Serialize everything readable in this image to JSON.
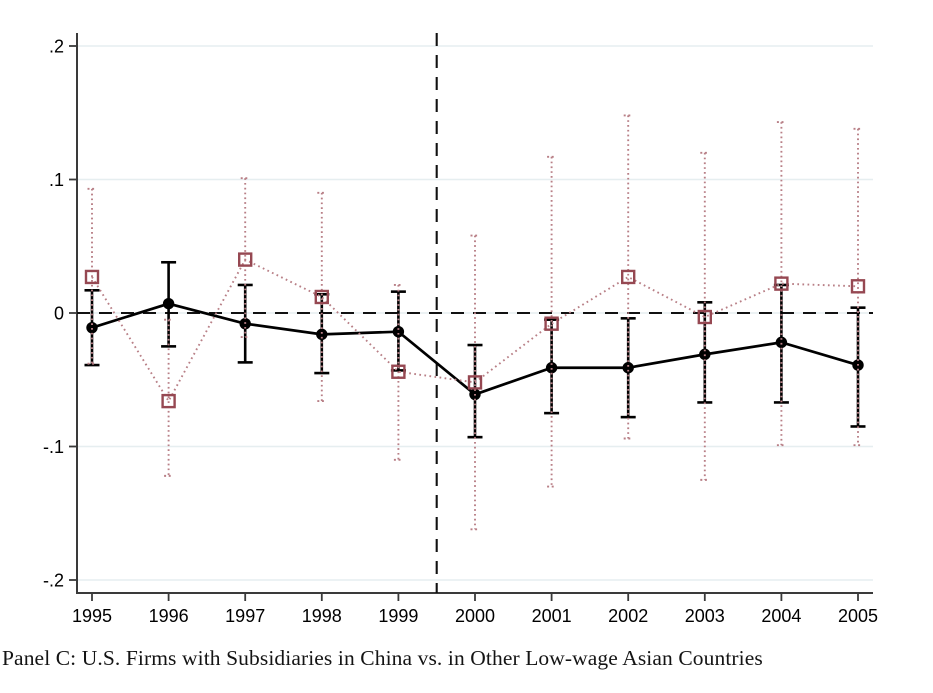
{
  "caption": "Panel C: U.S. Firms with Subsidiaries in China vs. in Other Low-wage Asian Countries",
  "chart_data": {
    "type": "line",
    "subtype": "event-study point estimates with confidence intervals",
    "title": "",
    "xlabel": "",
    "ylabel": "",
    "x": [
      1995,
      1996,
      1997,
      1998,
      1999,
      2000,
      2001,
      2002,
      2003,
      2004,
      2005
    ],
    "x_tick_labels": [
      "1995",
      "1996",
      "1997",
      "1998",
      "1999",
      "2000",
      "2001",
      "2002",
      "2003",
      "2004",
      "2005"
    ],
    "y_ticks": [
      0.2,
      0.1,
      0,
      -0.1,
      -0.2
    ],
    "y_tick_labels": [
      ".2",
      ".1",
      "0",
      "-.1",
      "-.2"
    ],
    "ylim": [
      -0.21,
      0.21
    ],
    "grid": "horizontal",
    "gridline_color": "#e6eef0",
    "axis_color": "#3a3a3a",
    "legend": "none",
    "reference_lines": [
      {
        "axis": "y",
        "value": 0,
        "style": "dashed",
        "color": "#111111"
      },
      {
        "axis": "x",
        "value": 1999.5,
        "style": "dashed",
        "color": "#111111"
      }
    ],
    "series": [
      {
        "name": "U.S. firms with subsidiaries in China",
        "marker": "filled-circle",
        "line_style": "solid",
        "color": "#000000",
        "est": [
          -0.011,
          0.007,
          -0.008,
          -0.016,
          -0.014,
          -0.061,
          -0.041,
          -0.041,
          -0.031,
          -0.022,
          -0.039
        ],
        "ci_low": [
          -0.039,
          -0.025,
          -0.037,
          -0.045,
          -0.043,
          -0.093,
          -0.075,
          -0.078,
          -0.067,
          -0.067,
          -0.085
        ],
        "ci_high": [
          0.017,
          0.038,
          0.021,
          0.014,
          0.016,
          -0.024,
          -0.005,
          -0.004,
          0.008,
          0.021,
          0.004
        ]
      },
      {
        "name": "U.S. firms with subsidiaries in other low-wage Asian countries",
        "marker": "hollow-square",
        "line_style": "dotted",
        "color": "#964852",
        "ci_color": "#b87f86",
        "est": [
          0.027,
          -0.066,
          0.04,
          0.012,
          -0.044,
          -0.052,
          -0.008,
          0.027,
          -0.003,
          0.022,
          0.02
        ],
        "ci_low": [
          -0.038,
          -0.122,
          -0.018,
          -0.066,
          -0.11,
          -0.162,
          -0.13,
          -0.094,
          -0.125,
          -0.099,
          -0.099
        ],
        "ci_high": [
          0.093,
          -0.005,
          0.101,
          0.09,
          0.021,
          0.058,
          0.117,
          0.148,
          0.12,
          0.143,
          0.138
        ]
      }
    ]
  }
}
